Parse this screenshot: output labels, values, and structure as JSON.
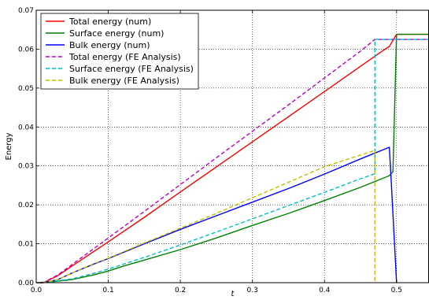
{
  "chart_data": {
    "type": "line",
    "xlabel": "t",
    "ylabel": "Energy",
    "xlim": [
      0.0,
      0.545
    ],
    "ylim": [
      0.0,
      0.07
    ],
    "xticks": [
      "0.0",
      "0.1",
      "0.2",
      "0.3",
      "0.4",
      "0.5"
    ],
    "yticks": [
      "0.00",
      "0.01",
      "0.02",
      "0.03",
      "0.04",
      "0.05",
      "0.06",
      "0.07"
    ],
    "grid": true,
    "legend_position": "top-left",
    "series": [
      {
        "name": "Total energy (num)",
        "color": "#ff0000",
        "style": "solid",
        "x": [
          0.0,
          0.01,
          0.03,
          0.05,
          0.1,
          0.15,
          0.2,
          0.3,
          0.4,
          0.45,
          0.48,
          0.49,
          0.5,
          0.545
        ],
        "y": [
          0.0,
          0.0,
          0.0018,
          0.0043,
          0.0105,
          0.0168,
          0.0233,
          0.0362,
          0.0491,
          0.0556,
          0.0595,
          0.0607,
          0.0638,
          0.0638
        ]
      },
      {
        "name": "Surface energy (num)",
        "color": "#008000",
        "style": "solid",
        "x": [
          0.0,
          0.02,
          0.05,
          0.08,
          0.1,
          0.12,
          0.15,
          0.2,
          0.25,
          0.3,
          0.35,
          0.4,
          0.45,
          0.49,
          0.495,
          0.5,
          0.545
        ],
        "y": [
          0.0,
          0.0002,
          0.0008,
          0.002,
          0.003,
          0.0042,
          0.0058,
          0.0085,
          0.0115,
          0.0147,
          0.0178,
          0.0211,
          0.0245,
          0.0275,
          0.0285,
          0.0638,
          0.0638
        ]
      },
      {
        "name": "Bulk energy (num)",
        "color": "#0000ff",
        "style": "solid",
        "x": [
          0.0,
          0.01,
          0.03,
          0.05,
          0.08,
          0.1,
          0.15,
          0.2,
          0.25,
          0.3,
          0.35,
          0.4,
          0.45,
          0.49,
          0.492,
          0.5
        ],
        "y": [
          0.0,
          0.0,
          0.0008,
          0.0025,
          0.0048,
          0.0062,
          0.01,
          0.0137,
          0.0172,
          0.0207,
          0.0242,
          0.0279,
          0.0318,
          0.0348,
          0.028,
          0.0
        ]
      },
      {
        "name": "Total energy (FE Analysis)",
        "color": "#bf00bf",
        "style": "dashed",
        "x": [
          0.0,
          0.01,
          0.03,
          0.05,
          0.1,
          0.15,
          0.2,
          0.25,
          0.3,
          0.35,
          0.4,
          0.45,
          0.47,
          0.5,
          0.545
        ],
        "y": [
          0.0,
          0.0,
          0.002,
          0.0047,
          0.0115,
          0.0183,
          0.0252,
          0.0321,
          0.0389,
          0.0457,
          0.0526,
          0.0595,
          0.0625,
          0.0625,
          0.0625
        ]
      },
      {
        "name": "Surface energy (FE Analysis)",
        "color": "#00bfbf",
        "style": "dashed",
        "x": [
          0.0,
          0.02,
          0.05,
          0.08,
          0.1,
          0.15,
          0.2,
          0.25,
          0.3,
          0.35,
          0.4,
          0.45,
          0.47,
          0.47,
          0.545
        ],
        "y": [
          0.0,
          0.0002,
          0.001,
          0.0024,
          0.0035,
          0.0065,
          0.0097,
          0.013,
          0.0164,
          0.0198,
          0.0232,
          0.0267,
          0.028,
          0.0625,
          0.0625
        ]
      },
      {
        "name": "Bulk energy (FE Analysis)",
        "color": "#bfbf00",
        "style": "dashed",
        "x": [
          0.0,
          0.01,
          0.03,
          0.05,
          0.08,
          0.1,
          0.15,
          0.2,
          0.25,
          0.3,
          0.35,
          0.4,
          0.45,
          0.47,
          0.47
        ],
        "y": [
          0.0,
          0.0,
          0.0008,
          0.0025,
          0.0049,
          0.0063,
          0.0102,
          0.014,
          0.0178,
          0.0218,
          0.0258,
          0.0298,
          0.0328,
          0.034,
          0.0
        ]
      }
    ]
  }
}
